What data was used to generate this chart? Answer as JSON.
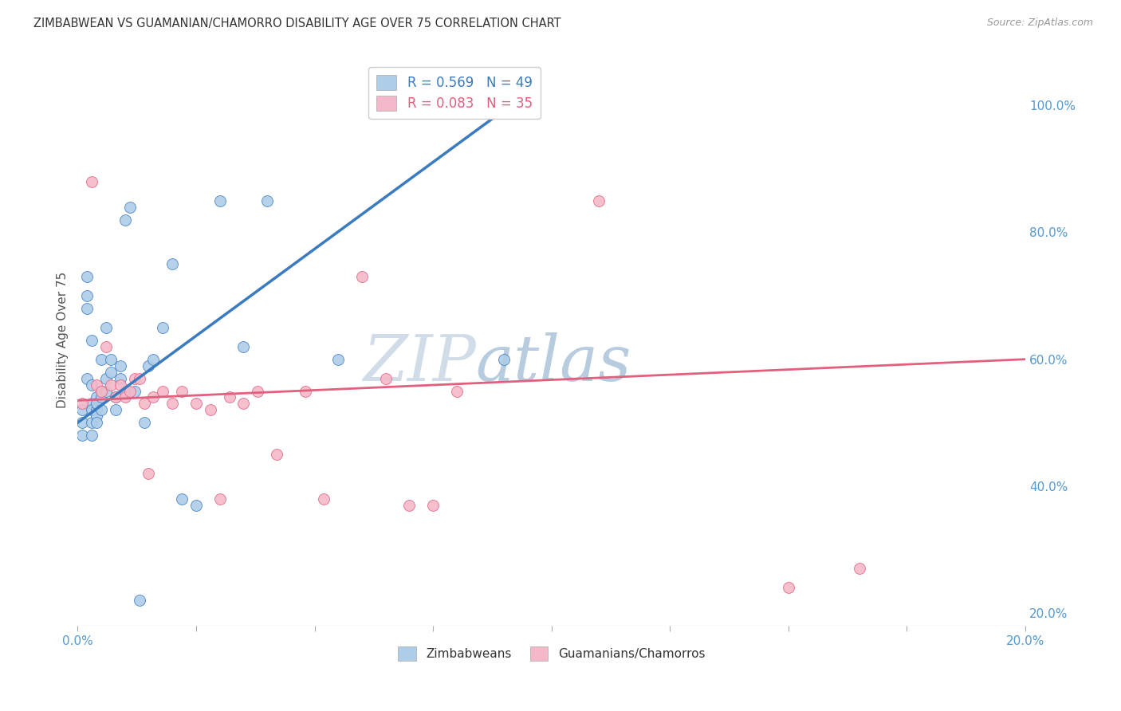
{
  "title": "ZIMBABWEAN VS GUAMANIAN/CHAMORRO DISABILITY AGE OVER 75 CORRELATION CHART",
  "source": "Source: ZipAtlas.com",
  "ylabel": "Disability Age Over 75",
  "blue_R": 0.569,
  "blue_N": 49,
  "pink_R": 0.083,
  "pink_N": 35,
  "blue_color": "#aecde8",
  "blue_line_color": "#3a7abf",
  "pink_color": "#f4b8c8",
  "pink_line_color": "#e0607e",
  "watermark_color_zip": "#d0dde8",
  "watermark_color_atlas": "#b8cce0",
  "grid_color": "#dddddd",
  "title_color": "#333333",
  "source_color": "#999999",
  "axis_tick_color": "#5599cc",
  "ylabel_color": "#555555",
  "blue_x": [
    0.001,
    0.001,
    0.001,
    0.002,
    0.002,
    0.002,
    0.002,
    0.003,
    0.003,
    0.003,
    0.003,
    0.003,
    0.003,
    0.004,
    0.004,
    0.004,
    0.004,
    0.004,
    0.005,
    0.005,
    0.005,
    0.005,
    0.006,
    0.006,
    0.006,
    0.007,
    0.007,
    0.008,
    0.008,
    0.009,
    0.009,
    0.01,
    0.01,
    0.011,
    0.012,
    0.013,
    0.014,
    0.015,
    0.016,
    0.018,
    0.02,
    0.022,
    0.025,
    0.03,
    0.035,
    0.04,
    0.055,
    0.09,
    0.095
  ],
  "blue_y": [
    0.5,
    0.52,
    0.48,
    0.68,
    0.73,
    0.7,
    0.57,
    0.63,
    0.53,
    0.52,
    0.5,
    0.48,
    0.56,
    0.54,
    0.52,
    0.51,
    0.5,
    0.53,
    0.55,
    0.6,
    0.54,
    0.52,
    0.65,
    0.55,
    0.57,
    0.58,
    0.6,
    0.52,
    0.54,
    0.57,
    0.59,
    0.55,
    0.82,
    0.84,
    0.55,
    0.22,
    0.5,
    0.59,
    0.6,
    0.65,
    0.75,
    0.38,
    0.37,
    0.85,
    0.62,
    0.85,
    0.6,
    0.6,
    1.0
  ],
  "pink_x": [
    0.001,
    0.003,
    0.004,
    0.005,
    0.006,
    0.007,
    0.008,
    0.009,
    0.01,
    0.011,
    0.012,
    0.013,
    0.014,
    0.015,
    0.016,
    0.018,
    0.02,
    0.022,
    0.025,
    0.028,
    0.03,
    0.032,
    0.035,
    0.038,
    0.042,
    0.048,
    0.052,
    0.06,
    0.065,
    0.07,
    0.075,
    0.08,
    0.11,
    0.15,
    0.165
  ],
  "pink_y": [
    0.53,
    0.88,
    0.56,
    0.55,
    0.62,
    0.56,
    0.54,
    0.56,
    0.54,
    0.55,
    0.57,
    0.57,
    0.53,
    0.42,
    0.54,
    0.55,
    0.53,
    0.55,
    0.53,
    0.52,
    0.38,
    0.54,
    0.53,
    0.55,
    0.45,
    0.55,
    0.38,
    0.73,
    0.57,
    0.37,
    0.37,
    0.55,
    0.85,
    0.24,
    0.27
  ],
  "blue_line_x0": 0.0,
  "blue_line_y0": 0.5,
  "blue_line_x1": 0.095,
  "blue_line_y1": 1.02,
  "pink_line_x0": 0.0,
  "pink_line_y0": 0.535,
  "pink_line_x1": 0.2,
  "pink_line_y1": 0.6,
  "xlim": [
    0.0,
    0.2
  ],
  "ylim": [
    0.18,
    1.08
  ],
  "xticks": [
    0.0,
    0.025,
    0.05,
    0.075,
    0.1,
    0.125,
    0.15,
    0.175,
    0.2
  ],
  "yticks_right": [
    0.2,
    0.4,
    0.6,
    0.8,
    1.0
  ],
  "figsize": [
    14.06,
    8.92
  ],
  "dpi": 100
}
